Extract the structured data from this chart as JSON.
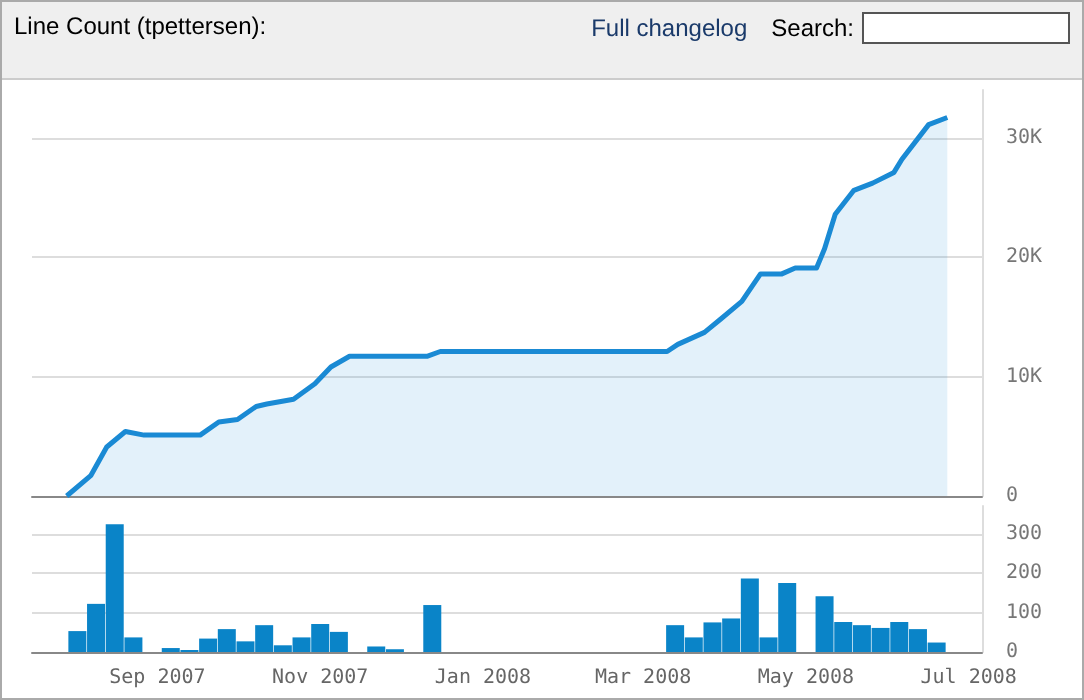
{
  "chart_data": [
    {
      "type": "area",
      "title": "Line Count (tpettersen):",
      "annotations": [
        "Full changelog",
        "Search:"
      ],
      "color": "#1a8ad4",
      "marker": "none",
      "grid": "y",
      "tick_labels": "y",
      "x": [
        "2007-07-29",
        "2007-08-07",
        "2007-08-13",
        "2007-08-20",
        "2007-08-27",
        "2007-09-17",
        "2007-09-24",
        "2007-10-01",
        "2007-10-08",
        "2007-10-12",
        "2007-10-22",
        "2007-10-30",
        "2007-11-05",
        "2007-11-12",
        "2007-12-11",
        "2007-12-16",
        "2008-03-10",
        "2008-03-14",
        "2008-03-24",
        "2008-03-30",
        "2008-04-07",
        "2008-04-14",
        "2008-04-22",
        "2008-04-27",
        "2008-05-05",
        "2008-05-08",
        "2008-05-12",
        "2008-05-19",
        "2008-05-26",
        "2008-06-03",
        "2008-06-06",
        "2008-06-16",
        "2008-06-23"
      ],
      "values": [
        0,
        1700,
        4100,
        5400,
        5100,
        5100,
        6200,
        6400,
        7500,
        7700,
        8100,
        9400,
        10800,
        11700,
        11700,
        12100,
        12100,
        12700,
        13700,
        14800,
        16300,
        18600,
        18600,
        19100,
        19100,
        20700,
        23600,
        25600,
        26200,
        27100,
        28200,
        31100,
        31700
      ],
      "xlim": [
        "2007-07-16",
        "2008-07-06"
      ],
      "ylim": [
        0,
        34000
      ],
      "yticks": [
        {
          "value": 0,
          "label": "0"
        },
        {
          "value": 10000,
          "label": "10K"
        },
        {
          "value": 20000,
          "label": "20K"
        },
        {
          "value": 30000,
          "label": "30K"
        }
      ]
    },
    {
      "type": "bar",
      "color": "#0a84c8",
      "grid": "y",
      "x": [
        "2007-08-02",
        "2007-08-09",
        "2007-08-16",
        "2007-08-23",
        "2007-08-30",
        "2007-09-06",
        "2007-09-13",
        "2007-09-20",
        "2007-09-27",
        "2007-10-04",
        "2007-10-11",
        "2007-10-18",
        "2007-10-25",
        "2007-11-01",
        "2007-11-08",
        "2007-11-15",
        "2007-11-22",
        "2007-11-29",
        "2007-12-06",
        "2007-12-13",
        "2007-12-20",
        "2007-12-27",
        "2008-01-03",
        "2008-01-10",
        "2008-01-17",
        "2008-01-24",
        "2008-01-31",
        "2008-02-07",
        "2008-02-14",
        "2008-02-21",
        "2008-02-28",
        "2008-03-06",
        "2008-03-13",
        "2008-03-20",
        "2008-03-27",
        "2008-04-03",
        "2008-04-10",
        "2008-04-17",
        "2008-04-24",
        "2008-05-01",
        "2008-05-08",
        "2008-05-15",
        "2008-05-22",
        "2008-05-29",
        "2008-06-05",
        "2008-06-12",
        "2008-06-19"
      ],
      "values": [
        53,
        122,
        324,
        37,
        0,
        10,
        5,
        34,
        58,
        27,
        68,
        17,
        37,
        71,
        51,
        0,
        14,
        7,
        0,
        119,
        0,
        0,
        0,
        0,
        0,
        0,
        0,
        0,
        0,
        0,
        0,
        0,
        68,
        37,
        75,
        85,
        186,
        37,
        175,
        0,
        141,
        76,
        68,
        61,
        76,
        58,
        24
      ],
      "xlim": [
        "2007-07-16",
        "2008-07-06"
      ],
      "ylim": [
        0,
        370
      ],
      "xticks": [
        {
          "value": "2007-09-01",
          "label": "Sep 2007"
        },
        {
          "value": "2007-11-01",
          "label": "Nov 2007"
        },
        {
          "value": "2008-01-01",
          "label": "Jan 2008"
        },
        {
          "value": "2008-03-01",
          "label": "Mar 2008"
        },
        {
          "value": "2008-05-01",
          "label": "May 2008"
        },
        {
          "value": "2008-07-01",
          "label": "Jul 2008"
        }
      ],
      "yticks": [
        0,
        100,
        200,
        300
      ]
    }
  ]
}
